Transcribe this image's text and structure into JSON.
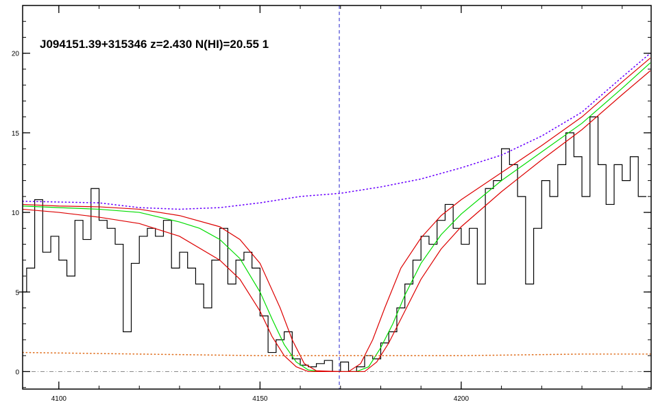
{
  "chart_data": {
    "type": "line",
    "annotation": "J094151.39+315346 z=2.430 N(HI)=20.55 1",
    "xlim": [
      4091,
      4247.2
    ],
    "ylim": [
      -1.1,
      23
    ],
    "xticks": [
      4100,
      4150,
      4200
    ],
    "yticks": [
      0,
      5,
      10,
      15,
      20
    ],
    "xminor_step": 10,
    "yminor_step": 1,
    "zero_line": 0,
    "vline": 4169.7,
    "series": [
      {
        "color": "#000000",
        "style": "step",
        "x": [
          4091,
          4093,
          4095,
          4097,
          4099,
          4101,
          4103,
          4105,
          4107,
          4109,
          4111,
          4113,
          4115,
          4117,
          4119,
          4121,
          4123,
          4125,
          4127,
          4129,
          4131,
          4133,
          4135,
          4137,
          4139,
          4141,
          4143,
          4145,
          4147,
          4149,
          4151,
          4153,
          4155,
          4157,
          4159,
          4161,
          4163,
          4165,
          4167,
          4169,
          4171,
          4173,
          4175,
          4177,
          4179,
          4181,
          4183,
          4185,
          4187,
          4189,
          4191,
          4193,
          4195,
          4197,
          4199,
          4201,
          4203,
          4205,
          4207,
          4209,
          4211,
          4213,
          4215,
          4217,
          4219,
          4221,
          4223,
          4225,
          4227,
          4229,
          4231,
          4233,
          4235,
          4237,
          4239,
          4241,
          4243,
          4245
        ],
        "values": [
          5.0,
          6.5,
          10.8,
          7.5,
          8.5,
          7.0,
          6.0,
          9.5,
          8.3,
          11.5,
          9.5,
          9.0,
          8.0,
          2.5,
          6.8,
          8.5,
          9.0,
          8.5,
          9.5,
          6.5,
          7.5,
          6.5,
          5.5,
          4.0,
          7.0,
          9.0,
          5.5,
          7.0,
          7.5,
          6.5,
          3.5,
          1.2,
          2.0,
          2.5,
          0.8,
          0.4,
          0.3,
          0.5,
          0.7,
          0.0,
          0.6,
          0.0,
          0.3,
          1.0,
          0.8,
          1.8,
          2.5,
          4.0,
          5.5,
          7.0,
          8.5,
          8.0,
          9.5,
          10.5,
          9.0,
          8.0,
          9.0,
          5.5,
          11.5,
          12.0,
          14.0,
          13.0,
          11.0,
          5.5,
          9.0,
          12.0,
          11.0,
          13.0,
          15.0,
          13.5,
          11.0,
          16.0,
          13.0,
          10.5,
          13.0,
          12.0,
          13.5,
          11.0
        ]
      },
      {
        "color": "#00dd00",
        "style": "solid",
        "x": [
          4091,
          4100,
          4110,
          4120,
          4130,
          4135,
          4140,
          4145,
          4150,
          4153,
          4156,
          4159,
          4162,
          4165,
          4170,
          4174,
          4177,
          4180,
          4183,
          4186,
          4190,
          4195,
          4200,
          4210,
          4220,
          4230,
          4240,
          4247
        ],
        "values": [
          10.4,
          10.3,
          10.2,
          10.0,
          9.4,
          9.0,
          8.3,
          7.1,
          5.0,
          3.3,
          1.7,
          0.6,
          0.1,
          0,
          0,
          0,
          0.3,
          1.5,
          3.0,
          4.8,
          6.8,
          8.6,
          9.9,
          12.0,
          13.8,
          15.6,
          17.8,
          19.4
        ]
      },
      {
        "color": "#dd0000",
        "style": "solid",
        "x": [
          4091,
          4100,
          4110,
          4120,
          4130,
          4140,
          4145,
          4150,
          4155,
          4158,
          4161,
          4164,
          4170,
          4172,
          4175,
          4178,
          4181,
          4185,
          4190,
          4195,
          4200,
          4210,
          4220,
          4230,
          4240,
          4247
        ],
        "values": [
          10.5,
          10.4,
          10.35,
          10.2,
          9.8,
          9.1,
          8.3,
          6.8,
          4.0,
          2.0,
          0.5,
          0.05,
          0,
          0,
          0.5,
          2.0,
          4.0,
          6.5,
          8.4,
          9.8,
          10.8,
          12.5,
          14.2,
          16.0,
          18.2,
          19.7
        ]
      },
      {
        "color": "#dd0000",
        "style": "solid",
        "x": [
          4091,
          4100,
          4110,
          4120,
          4130,
          4140,
          4145,
          4150,
          4153,
          4156,
          4159,
          4162,
          4176,
          4179,
          4182,
          4186,
          4190,
          4195,
          4200,
          4210,
          4220,
          4230,
          4240,
          4247
        ],
        "values": [
          10.2,
          10.0,
          9.7,
          9.3,
          8.5,
          7.0,
          5.8,
          3.8,
          2.2,
          1.0,
          0.3,
          0,
          0,
          0.6,
          1.8,
          3.8,
          5.8,
          7.7,
          9.1,
          11.3,
          13.3,
          15.2,
          17.4,
          18.9
        ]
      },
      {
        "color": "#6a00ff",
        "style": "dotted",
        "x": [
          4091,
          4110,
          4120,
          4130,
          4140,
          4150,
          4160,
          4170,
          4180,
          4190,
          4200,
          4210,
          4220,
          4230,
          4240,
          4247
        ],
        "values": [
          10.7,
          10.6,
          10.3,
          10.2,
          10.3,
          10.6,
          11.0,
          11.2,
          11.6,
          12.1,
          12.8,
          13.6,
          14.8,
          16.3,
          18.5,
          20.0
        ]
      },
      {
        "color": "#e07020",
        "style": "dotted",
        "x": [
          4091,
          4120,
          4150,
          4180,
          4200,
          4230,
          4247
        ],
        "values": [
          1.2,
          1.1,
          1.0,
          1.0,
          1.0,
          1.1,
          1.1
        ]
      }
    ]
  }
}
